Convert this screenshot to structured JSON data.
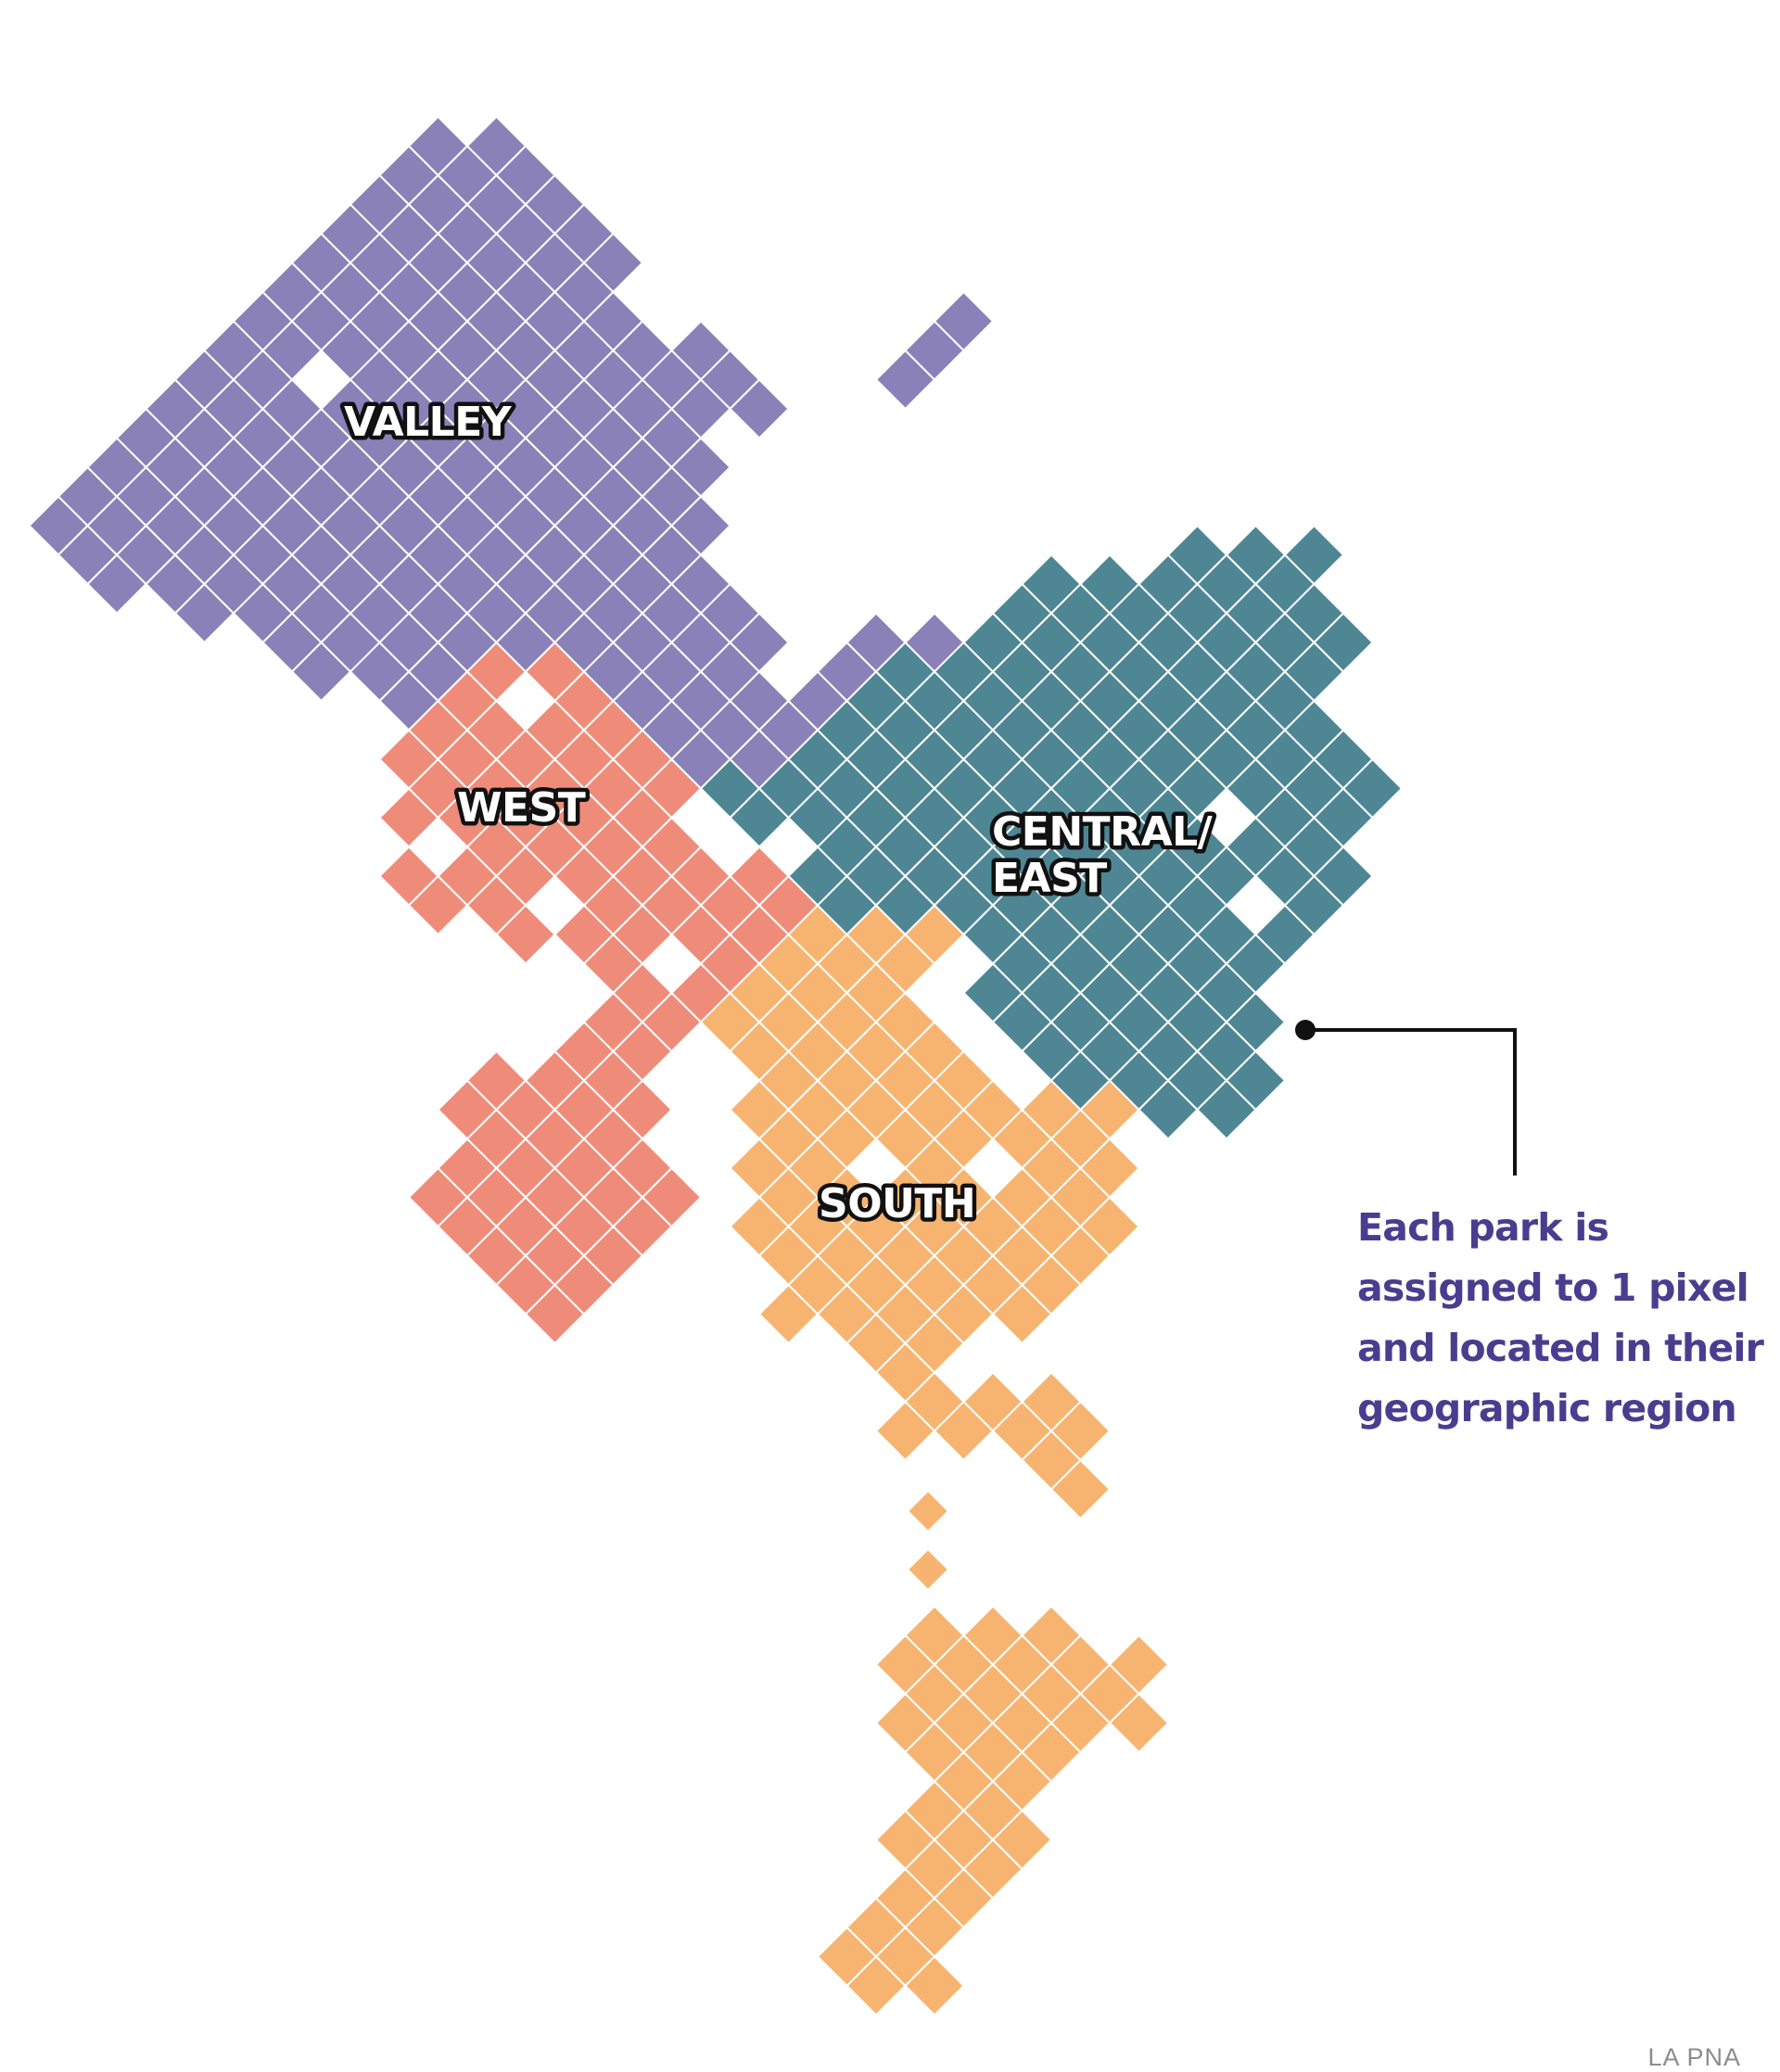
{
  "map": {
    "regions": [
      {
        "id": "valley",
        "name": "VALLEY",
        "color": "#8a81b8"
      },
      {
        "id": "west",
        "name": "WEST",
        "color": "#ef8c79"
      },
      {
        "id": "central_east",
        "name": "CENTRAL/\nEAST",
        "line1": "CENTRAL/",
        "line2": "EAST",
        "color": "#4e8694"
      },
      {
        "id": "south",
        "name": "SOUTH",
        "color": "#f7b470"
      }
    ],
    "grid_line_color": "#ffffff",
    "annotation": {
      "lines": [
        "Each park is",
        "assigned to 1 pixel",
        "and located in their",
        "geographic region"
      ],
      "color": "#4a3d8f"
    },
    "source": "LA PNA"
  }
}
